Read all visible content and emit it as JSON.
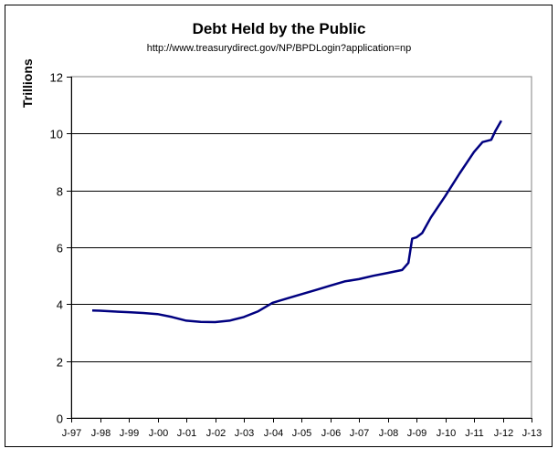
{
  "chart_data": {
    "type": "line",
    "title": "Debt Held by the Public",
    "subtitle": "http://www.treasurydirect.gov/NP/BPDLogin?application=np",
    "xlabel": "",
    "ylabel": "Trillions",
    "ylim": [
      0,
      12
    ],
    "yticks": [
      0,
      2,
      4,
      6,
      8,
      10,
      12
    ],
    "xticks": [
      "J-97",
      "J-98",
      "J-99",
      "J-00",
      "J-01",
      "J-02",
      "J-03",
      "J-04",
      "J-05",
      "J-06",
      "J-07",
      "J-08",
      "J-09",
      "J-10",
      "J-11",
      "J-12",
      "J-13"
    ],
    "xlim": [
      1997,
      2013
    ],
    "grid": true,
    "legend": "none",
    "line_color": "#000080",
    "series": [
      {
        "name": "Debt Held by the Public",
        "x": [
          1997.73,
          1998.0,
          1998.5,
          1999.0,
          1999.5,
          2000.0,
          2000.5,
          2001.0,
          2001.5,
          2002.0,
          2002.5,
          2003.0,
          2003.5,
          2004.0,
          2004.5,
          2005.0,
          2005.5,
          2006.0,
          2006.5,
          2007.0,
          2007.5,
          2008.0,
          2008.5,
          2008.72,
          2008.85,
          2009.0,
          2009.2,
          2009.5,
          2010.0,
          2010.5,
          2011.0,
          2011.3,
          2011.6,
          2011.75,
          2011.95
        ],
        "values": [
          3.78,
          3.77,
          3.74,
          3.72,
          3.69,
          3.65,
          3.55,
          3.42,
          3.38,
          3.37,
          3.42,
          3.55,
          3.75,
          4.05,
          4.2,
          4.35,
          4.5,
          4.65,
          4.8,
          4.88,
          5.0,
          5.1,
          5.2,
          5.45,
          6.3,
          6.35,
          6.5,
          7.05,
          7.8,
          8.6,
          9.35,
          9.7,
          9.78,
          10.1,
          10.45
        ]
      }
    ]
  },
  "ui": {
    "title": "Debt Held by the Public",
    "subtitle": "http://www.treasurydirect.gov/NP/BPDLogin?application=np",
    "ylabel": "Trillions"
  }
}
